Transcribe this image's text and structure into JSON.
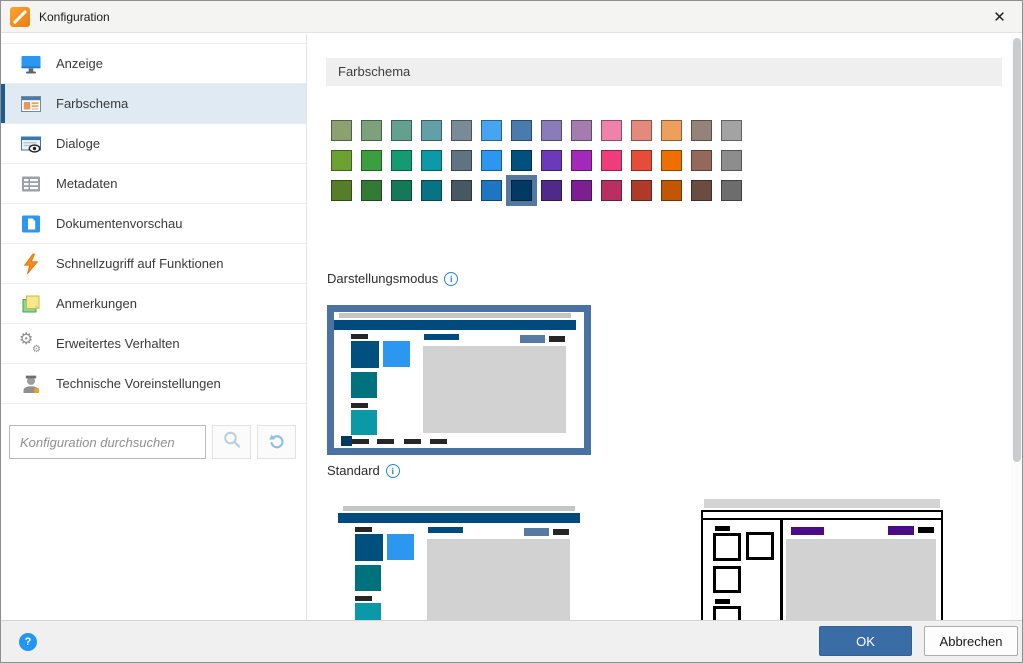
{
  "window": {
    "title": "Konfiguration",
    "close_glyph": "✕"
  },
  "sidebar": {
    "items": [
      {
        "label": "Anzeige",
        "icon": "monitor-icon",
        "selected": false
      },
      {
        "label": "Farbschema",
        "icon": "color-scheme-window-icon",
        "selected": true
      },
      {
        "label": "Dialoge",
        "icon": "dialog-eye-icon",
        "selected": false
      },
      {
        "label": "Metadaten",
        "icon": "metadata-table-icon",
        "selected": false
      },
      {
        "label": "Dokumentenvorschau",
        "icon": "document-preview-icon",
        "selected": false
      },
      {
        "label": "Schnellzugriff auf Funktionen",
        "icon": "lightning-icon",
        "selected": false
      },
      {
        "label": "Anmerkungen",
        "icon": "sticky-notes-icon",
        "selected": false
      },
      {
        "label": "Erweitertes Verhalten",
        "icon": "gears-icon",
        "selected": false
      },
      {
        "label": "Technische Voreinstellungen",
        "icon": "technician-icon",
        "selected": false
      }
    ],
    "search": {
      "placeholder": "Konfiguration durchsuchen"
    }
  },
  "main": {
    "section_title": "Farbschema",
    "palette": {
      "rows": [
        [
          "#8da06f",
          "#7ca17b",
          "#659f8d",
          "#639fa8",
          "#7a8b98",
          "#47a4f0",
          "#4a7bae",
          "#8a7cba",
          "#a57cb0",
          "#ee82a8",
          "#e48a7c",
          "#eda05c",
          "#948379",
          "#a3a3a3"
        ],
        [
          "#6da232",
          "#3c9e3f",
          "#149b72",
          "#0d9aa8",
          "#5f7482",
          "#2b97f0",
          "#00517e",
          "#6b3ab8",
          "#a329b8",
          "#ee3d78",
          "#e54d38",
          "#ee6f00",
          "#94695c",
          "#8d8d8d"
        ],
        [
          "#567d28",
          "#337a35",
          "#137a58",
          "#087483",
          "#465864",
          "#1d76c2",
          "#003a63",
          "#502a8a",
          "#7c2091",
          "#b8305f",
          "#b03a2a",
          "#c25703",
          "#6b4c41",
          "#6d6d6d"
        ]
      ],
      "selected": {
        "row": 2,
        "col": 6
      },
      "selection_outline": "#54779f"
    },
    "display_mode": {
      "label": "Darstellungsmodus",
      "info_glyph": "i",
      "options": [
        {
          "name": "Standard",
          "selected": true
        }
      ]
    }
  },
  "footer": {
    "ok_label": "OK",
    "cancel_label": "Abbrechen",
    "help_glyph": "?"
  },
  "colors": {
    "accent_blue": "#2b97f0",
    "selected_item_bg": "#dfeaf3",
    "selected_item_border": "#1e5c94",
    "ok_button": "#3a6ca6",
    "preview_border": "#4a72a3",
    "navy_theme": "#004a7d"
  }
}
